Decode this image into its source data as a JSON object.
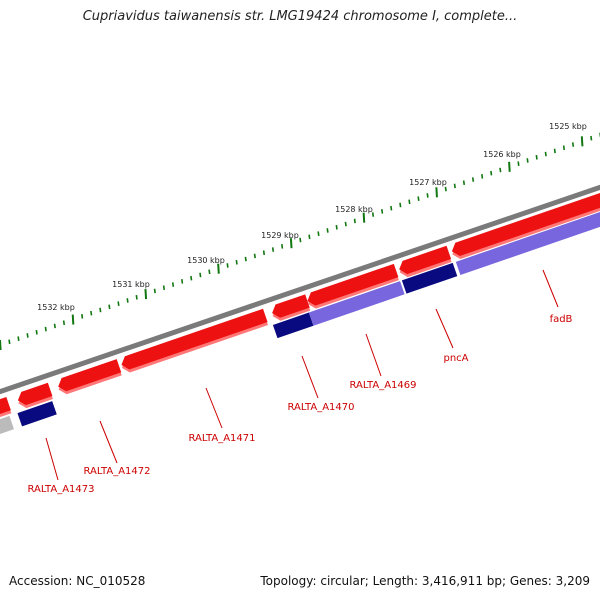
{
  "title": "Cupriavidus taiwanensis str. LMG19424 chromosome I, complete...",
  "footer": {
    "accession": "Accession: NC_010528",
    "summary": "Topology: circular; Length: 3,416,911 bp; Genes: 3,209"
  },
  "colors": {
    "backbone": "#7a7a7a",
    "forward_gene": "#ee1111",
    "forward_gene_shadow": "#ff7777",
    "reverse_gene_dark": "#0a0a80",
    "reverse_gene_light": "#7766dd",
    "gray_feature": "#bbbbbb",
    "tick": "#117711",
    "label": "#cc0000"
  },
  "scale": {
    "unit": "kbp",
    "major_ticks": [
      {
        "label": "1525 kbp"
      },
      {
        "label": "1526 kbp"
      },
      {
        "label": "1527 kbp"
      },
      {
        "label": "1528 kbp"
      },
      {
        "label": "1529 kbp"
      },
      {
        "label": "1530 kbp"
      },
      {
        "label": "1531 kbp"
      },
      {
        "label": "1532 kbp"
      }
    ]
  },
  "genes": [
    {
      "label": "RALTA_A1473",
      "strand": "reverse"
    },
    {
      "label": "RALTA_A1472",
      "strand": "forward"
    },
    {
      "label": "RALTA_A1471",
      "strand": "forward"
    },
    {
      "label": "RALTA_A1470",
      "strand": "forward"
    },
    {
      "label": "RALTA_A1469",
      "strand": "reverse"
    },
    {
      "label": "pncA",
      "strand": "reverse"
    },
    {
      "label": "fadB",
      "strand": "forward"
    }
  ]
}
